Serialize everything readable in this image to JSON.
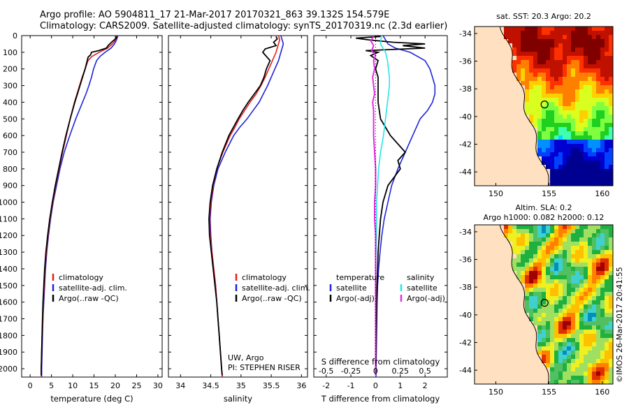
{
  "header": {
    "line1": "Argo profile: AO 5904811_17 21-Mar-2017 20170321_863 39.132S 154.579E",
    "line2": "Climatology: CARS2009. Satellite-adjusted climatology: synTS_20170319.nc (2.3d earlier)"
  },
  "watermark": "©IMOS 26-Mar-2017 20:41:55",
  "colors": {
    "climatology": "#e0201c",
    "satellite": "#1f24d8",
    "argo": "#000000",
    "salinity_sat": "#27e6e6",
    "salinity_argo": "#e22ce0"
  },
  "chart_data": [
    {
      "type": "line",
      "xlabel": "temperature (deg C)",
      "ylabel": "",
      "xlim": [
        -2,
        31
      ],
      "ylim": [
        2050,
        0
      ],
      "xticks": [
        0,
        5,
        10,
        15,
        20,
        25,
        30
      ],
      "yticks": [
        0,
        100,
        200,
        300,
        400,
        500,
        600,
        700,
        800,
        900,
        1000,
        1100,
        1200,
        1300,
        1400,
        1500,
        1600,
        1700,
        1800,
        1900,
        2000
      ],
      "legend": {
        "position": "lower-left",
        "items": [
          "climatology",
          "satellite-adj. clim.",
          "Argo(..raw -QC)"
        ]
      },
      "series": [
        {
          "name": "climatology",
          "depth": [
            0,
            25,
            50,
            75,
            100,
            125,
            150,
            200,
            250,
            300,
            350,
            400,
            500,
            600,
            700,
            800,
            900,
            1000,
            1100,
            1200,
            1300,
            1400,
            1500,
            1600,
            1700,
            1800,
            1900,
            2000,
            2050
          ],
          "values": [
            20.3,
            20.1,
            19.3,
            18.2,
            16.2,
            14.5,
            13.6,
            12.9,
            12.2,
            11.6,
            11.0,
            10.4,
            9.4,
            8.5,
            7.6,
            6.8,
            6.0,
            5.3,
            4.7,
            4.2,
            3.8,
            3.5,
            3.3,
            3.1,
            3.0,
            2.8,
            2.7,
            2.6,
            2.6
          ]
        },
        {
          "name": "satellite-adj. clim.",
          "depth": [
            0,
            25,
            50,
            75,
            100,
            125,
            150,
            200,
            250,
            300,
            350,
            400,
            500,
            600,
            700,
            800,
            900,
            1000,
            1100,
            1200,
            1300,
            1400,
            1500,
            1600,
            1700,
            1800,
            1900,
            2000,
            2050
          ],
          "values": [
            20.6,
            20.3,
            19.8,
            19.0,
            17.6,
            16.4,
            15.6,
            14.9,
            14.4,
            13.8,
            13.1,
            12.3,
            10.7,
            9.3,
            8.0,
            7.0,
            6.2,
            5.4,
            4.8,
            4.3,
            3.9,
            3.6,
            3.4,
            3.2,
            3.0,
            2.9,
            2.8,
            2.7,
            2.7
          ]
        },
        {
          "name": "Argo(..raw -QC)",
          "depth": [
            5,
            20,
            40,
            60,
            75,
            90,
            100,
            115,
            130,
            150,
            200,
            250,
            300,
            350,
            400,
            500,
            600,
            700,
            800,
            900,
            1000,
            1100,
            1200,
            1300,
            1400,
            1500,
            1600,
            1700,
            1800,
            1900,
            2000,
            2040
          ],
          "values": [
            20.4,
            20.0,
            19.1,
            18.3,
            17.9,
            16.1,
            14.4,
            14.2,
            13.6,
            13.4,
            12.9,
            12.3,
            11.7,
            11.1,
            10.5,
            9.4,
            8.4,
            7.5,
            6.7,
            5.9,
            5.2,
            4.6,
            4.1,
            3.7,
            3.4,
            3.2,
            3.0,
            2.9,
            2.8,
            2.7,
            2.6,
            2.6
          ]
        }
      ]
    },
    {
      "type": "line",
      "xlabel": "salinity",
      "ylabel": "",
      "xlim": [
        33.8,
        36.1
      ],
      "ylim": [
        2050,
        0
      ],
      "xticks": [
        34,
        34.5,
        35,
        35.5,
        36
      ],
      "legend": {
        "position": "lower-right",
        "items": [
          "climatology",
          "satellite-adj. clim.",
          "Argo(..raw -QC)"
        ]
      },
      "annotations": [
        "UW, Argo",
        "PI: STEPHEN RISER"
      ],
      "series": [
        {
          "name": "climatology",
          "depth": [
            0,
            25,
            50,
            75,
            100,
            150,
            200,
            250,
            300,
            350,
            400,
            450,
            500,
            550,
            600,
            700,
            800,
            900,
            1000,
            1100,
            1200,
            1300,
            1400,
            1500,
            1600,
            1700,
            1800,
            1900,
            2000,
            2050
          ],
          "values": [
            35.62,
            35.64,
            35.62,
            35.6,
            35.58,
            35.52,
            35.46,
            35.4,
            35.33,
            35.25,
            35.15,
            35.06,
            34.97,
            34.9,
            34.82,
            34.7,
            34.6,
            34.54,
            34.5,
            34.48,
            34.49,
            34.52,
            34.55,
            34.58,
            34.6,
            34.62,
            34.64,
            34.66,
            34.68,
            34.69
          ]
        },
        {
          "name": "satellite-adj. clim.",
          "depth": [
            0,
            25,
            50,
            75,
            100,
            150,
            200,
            250,
            300,
            350,
            400,
            450,
            500,
            550,
            600,
            700,
            800,
            900,
            1000,
            1100,
            1200,
            1300,
            1400,
            1500,
            1600,
            1700,
            1800,
            1900,
            2000,
            2050
          ],
          "values": [
            35.66,
            35.68,
            35.7,
            35.68,
            35.66,
            35.62,
            35.56,
            35.5,
            35.44,
            35.37,
            35.3,
            35.2,
            35.1,
            34.98,
            34.88,
            34.74,
            34.62,
            34.55,
            34.51,
            34.49,
            34.5,
            34.52,
            34.55,
            34.58,
            34.6,
            34.62,
            34.64,
            34.66,
            34.68,
            34.69
          ]
        },
        {
          "name": "Argo(..raw -QC)",
          "depth": [
            5,
            20,
            40,
            60,
            80,
            100,
            150,
            200,
            250,
            300,
            350,
            400,
            450,
            500,
            600,
            700,
            800,
            900,
            1000,
            1100,
            1200,
            1300,
            1400,
            1500,
            1600,
            1700,
            1800,
            1900,
            2000,
            2040
          ],
          "values": [
            35.58,
            35.6,
            35.54,
            35.58,
            35.4,
            35.36,
            35.48,
            35.42,
            35.38,
            35.32,
            35.22,
            35.12,
            35.03,
            34.95,
            34.8,
            34.69,
            34.6,
            34.53,
            34.49,
            34.47,
            34.48,
            34.51,
            34.54,
            34.57,
            34.6,
            34.62,
            34.64,
            34.66,
            34.68,
            34.69
          ]
        }
      ]
    },
    {
      "type": "line",
      "xlabel": "T difference from climatology",
      "xlabel2": "S difference from climatology",
      "xlim": [
        -2.5,
        2.9
      ],
      "ylim": [
        2050,
        0
      ],
      "xticks": [
        -2,
        -1,
        0,
        1,
        2
      ],
      "sticks": [
        -0.5,
        -0.25,
        0,
        0.25,
        0.5
      ],
      "legend": {
        "position": "lower-center",
        "titles": [
          "temperature",
          "salinity"
        ],
        "items": [
          "satellite",
          "Argo(-adj)",
          "satellite",
          "Argo(-adj)"
        ]
      },
      "series": [
        {
          "name": "satellite",
          "depth": [
            0,
            25,
            50,
            75,
            100,
            150,
            200,
            250,
            300,
            350,
            400,
            450,
            500,
            600,
            700,
            800,
            900,
            1000,
            1100,
            1200,
            1300,
            1400,
            1500,
            1600,
            1700,
            1800,
            1900,
            2000,
            2050
          ],
          "values": [
            0.3,
            0.4,
            0.5,
            0.8,
            1.4,
            2.0,
            2.2,
            2.3,
            2.4,
            2.4,
            2.3,
            2.1,
            1.8,
            1.5,
            1.2,
            0.9,
            0.65,
            0.5,
            0.35,
            0.25,
            0.18,
            0.12,
            0.08,
            0.06,
            0.05,
            0.04,
            0.03,
            0.02,
            0.02
          ]
        },
        {
          "name": "Argo(-adj)",
          "depth": [
            5,
            15,
            25,
            40,
            50,
            60,
            75,
            90,
            100,
            120,
            150,
            200,
            250,
            300,
            400,
            500,
            600,
            700,
            750,
            800,
            900,
            1000,
            1100,
            1200,
            1300,
            1400,
            1500,
            1600,
            1700,
            1800,
            1900,
            2000,
            2040
          ],
          "values": [
            0.2,
            -0.8,
            -0.3,
            0.7,
            2.0,
            1.1,
            2.0,
            -0.4,
            0.1,
            -0.2,
            0.1,
            0.0,
            0.1,
            0.1,
            0.1,
            0.2,
            0.6,
            1.2,
            0.9,
            1.0,
            0.5,
            0.3,
            0.2,
            0.15,
            0.1,
            0.08,
            0.06,
            0.05,
            0.04,
            0.03,
            0.02,
            0.01,
            0.01
          ]
        },
        {
          "name": "satellite",
          "unit": "salinity",
          "depth": [
            0,
            50,
            100,
            150,
            200,
            250,
            300,
            350,
            400,
            500,
            600,
            700,
            800,
            900,
            1000,
            1200,
            1400,
            1600,
            1800,
            2000,
            2050
          ],
          "values": [
            0.06,
            0.05,
            0.1,
            0.12,
            0.13,
            0.14,
            0.14,
            0.13,
            0.12,
            0.1,
            0.08,
            0.05,
            0.03,
            0.02,
            0.01,
            0.01,
            0.0,
            0.0,
            0.0,
            0.0,
            0.0
          ]
        },
        {
          "name": "Argo(-adj)",
          "unit": "salinity",
          "depth": [
            5,
            30,
            60,
            90,
            120,
            150,
            200,
            250,
            300,
            350,
            400,
            450,
            500,
            600,
            700,
            800,
            900,
            1000,
            1100,
            1200,
            1400,
            1600,
            1800,
            2000,
            2040
          ],
          "values": [
            -0.02,
            -0.05,
            -0.02,
            -0.04,
            0.0,
            -0.02,
            -0.01,
            -0.03,
            -0.02,
            -0.01,
            -0.03,
            -0.02,
            -0.02,
            -0.02,
            -0.01,
            0.0,
            0.0,
            -0.01,
            -0.01,
            0.0,
            0.0,
            0.0,
            0.0,
            0.0,
            0.0
          ]
        }
      ]
    },
    {
      "type": "heatmap",
      "title": "sat. SST: 20.3 Argo: 20.2",
      "xlim": [
        148,
        161
      ],
      "ylim": [
        -45,
        -33.5
      ],
      "xticks": [
        150,
        155,
        160
      ],
      "yticks": [
        -34,
        -36,
        -38,
        -40,
        -42,
        -44
      ],
      "marker": {
        "x": 154.58,
        "y": -39.13
      }
    },
    {
      "type": "heatmap",
      "title": "Altim. SLA: 0.2",
      "subtitle": "Argo h1000: 0.082 h2000: 0.12",
      "xlim": [
        148,
        161
      ],
      "ylim": [
        -45,
        -33.5
      ],
      "xticks": [
        150,
        155,
        160
      ],
      "yticks": [
        -34,
        -36,
        -38,
        -40,
        -42,
        -44
      ],
      "marker": {
        "x": 154.58,
        "y": -39.13
      }
    }
  ]
}
